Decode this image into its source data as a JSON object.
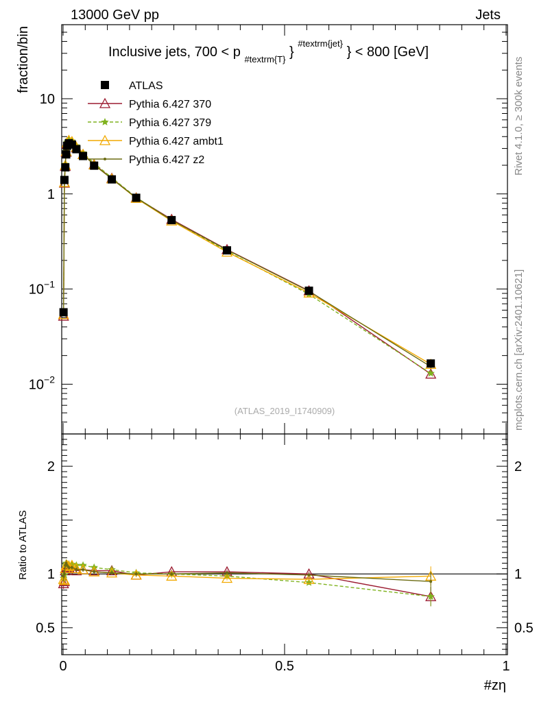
{
  "header": {
    "energy": "13000 GeV pp",
    "category": "Jets",
    "analysis_id": "(ATLAS_2019_I1740909)",
    "side_generator": "Rivet 4.1.0, ≥ 300k events",
    "side_source": "mcplots.cern.ch [arXiv:2401.10621]"
  },
  "chart_data": {
    "type": "line",
    "title": "Inclusive jets, 700 < p",
    "title_sub": "#textrm{T}",
    "title_sup": "#textrm{jet}",
    "title_end": "} < 800 [GeV]",
    "xlabel": "#zη",
    "ylabel": "fraction/bin",
    "ratio_ylabel": "Ratio to ATLAS",
    "xlim": [
      0,
      1
    ],
    "ylim": [
      0.003,
      60
    ],
    "yscale": "log",
    "ratio_ylim": [
      0.25,
      2.3
    ],
    "x_ticks": [
      {
        "value": 0,
        "label": "0"
      },
      {
        "value": 0.5,
        "label": "0.5"
      },
      {
        "value": 1,
        "label": "1"
      }
    ],
    "y_ticks": [
      {
        "value": 0.01,
        "base": "10",
        "exp": "−2"
      },
      {
        "value": 0.1,
        "base": "10",
        "exp": "−1"
      },
      {
        "value": 1,
        "base": "1",
        "exp": ""
      },
      {
        "value": 10,
        "base": "10",
        "exp": ""
      }
    ],
    "ratio_ticks": [
      {
        "value": 0.5,
        "label": "0.5"
      },
      {
        "value": 1,
        "label": "1"
      },
      {
        "value": 2,
        "label": "2"
      }
    ],
    "x": [
      0.001,
      0.003,
      0.005,
      0.007,
      0.009,
      0.013,
      0.02,
      0.03,
      0.045,
      0.07,
      0.11,
      0.165,
      0.245,
      0.37,
      0.555,
      0.83
    ],
    "data_values": [
      0.057,
      1.4,
      1.9,
      2.6,
      3.2,
      3.4,
      3.3,
      2.95,
      2.5,
      1.98,
      1.42,
      0.91,
      0.53,
      0.255,
      0.096,
      0.0165
    ],
    "series": [
      {
        "name": "ATLAS",
        "color": "#000000",
        "marker": "square",
        "dash": "none",
        "values": [
          0.057,
          1.4,
          1.9,
          2.6,
          3.2,
          3.4,
          3.3,
          2.95,
          2.5,
          1.98,
          1.42,
          0.91,
          0.53,
          0.255,
          0.096,
          0.0165
        ]
      },
      {
        "name": "Pythia 6.427 370",
        "color": "#9b1b30",
        "marker": "triangle-open",
        "dash": "none",
        "values": [
          0.052,
          1.3,
          1.95,
          2.75,
          3.35,
          3.6,
          3.45,
          3.05,
          2.6,
          2.04,
          1.46,
          0.91,
          0.54,
          0.26,
          0.096,
          0.0128
        ]
      },
      {
        "name": "Pythia 6.427 379",
        "color": "#7fb21e",
        "marker": "star",
        "dash": "5,3",
        "values": [
          0.055,
          1.38,
          2.05,
          2.85,
          3.5,
          3.7,
          3.6,
          3.2,
          2.7,
          2.1,
          1.48,
          0.92,
          0.53,
          0.25,
          0.088,
          0.013
        ]
      },
      {
        "name": "Pythia 6.427 ambt1",
        "color": "#f2a900",
        "marker": "triangle-open",
        "dash": "none",
        "values": [
          0.054,
          1.32,
          2.0,
          2.8,
          3.45,
          3.65,
          3.55,
          3.1,
          2.6,
          2.02,
          1.44,
          0.9,
          0.52,
          0.245,
          0.091,
          0.0162
        ]
      },
      {
        "name": "Pythia 6.427 z2",
        "color": "#6b6b12",
        "marker": "dot",
        "dash": "none",
        "values": [
          0.056,
          1.4,
          2.05,
          2.85,
          3.45,
          3.6,
          3.5,
          3.08,
          2.6,
          2.02,
          1.44,
          0.91,
          0.53,
          0.258,
          0.095,
          0.0153
        ]
      }
    ],
    "ratios": [
      {
        "name": "Pythia 6.427 370",
        "values": [
          0.91,
          0.93,
          1.03,
          1.06,
          1.05,
          1.06,
          1.05,
          1.03,
          1.04,
          1.03,
          1.03,
          0.99,
          1.02,
          1.02,
          1.0,
          0.79
        ]
      },
      {
        "name": "Pythia 6.427 379",
        "values": [
          0.96,
          0.99,
          1.08,
          1.1,
          1.09,
          1.09,
          1.09,
          1.08,
          1.08,
          1.06,
          1.04,
          1.01,
          1.0,
          0.98,
          0.92,
          0.79
        ]
      },
      {
        "name": "Pythia 6.427 ambt1",
        "values": [
          0.95,
          0.94,
          1.05,
          1.08,
          1.08,
          1.07,
          1.08,
          1.05,
          1.04,
          1.02,
          1.01,
          0.99,
          0.98,
          0.96,
          0.95,
          0.98
        ]
      },
      {
        "name": "Pythia 6.427 z2",
        "values": [
          0.98,
          1.0,
          1.08,
          1.1,
          1.08,
          1.06,
          1.06,
          1.04,
          1.04,
          1.02,
          1.01,
          1.0,
          1.0,
          1.01,
          0.99,
          0.93
        ]
      }
    ],
    "ratio_errors": [
      0.05,
      0.04,
      0.03,
      0.03,
      0.02,
      0.02,
      0.02,
      0.02,
      0.02,
      0.02,
      0.02,
      0.02,
      0.02,
      0.02,
      0.02,
      0.09
    ],
    "legend_position": "top-left"
  }
}
